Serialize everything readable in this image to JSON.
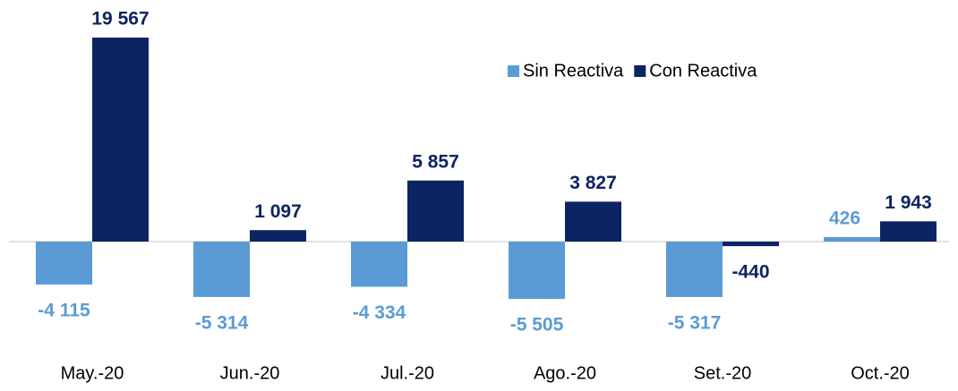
{
  "chart_data": {
    "type": "bar",
    "categories": [
      "May.-20",
      "Jun.-20",
      "Jul.-20",
      "Ago.-20",
      "Set.-20",
      "Oct.-20"
    ],
    "series": [
      {
        "name": "Sin Reactiva",
        "color": "#5b9bd5",
        "values": [
          -4115,
          -5314,
          -4334,
          -5505,
          -5317,
          426
        ],
        "value_labels": [
          "-4 115",
          "-5 314",
          "-4 334",
          "-5 505",
          "-5 317",
          "426"
        ]
      },
      {
        "name": "Con Reactiva",
        "color": "#0c2461",
        "values": [
          19567,
          1097,
          5857,
          3827,
          -440,
          1943
        ],
        "value_labels": [
          "19 567",
          "1 097",
          "5 857",
          "3 827",
          "-440",
          "1 943"
        ]
      }
    ],
    "legend": "top-right"
  }
}
